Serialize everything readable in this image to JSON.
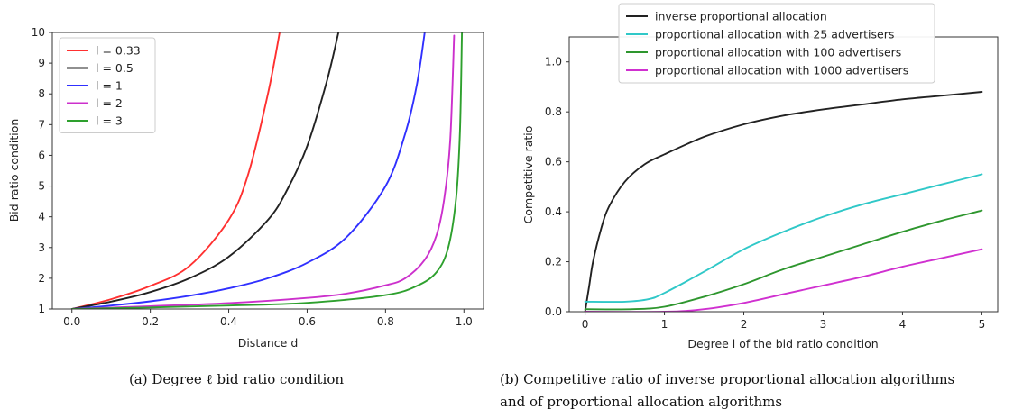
{
  "chart_data": [
    {
      "type": "line",
      "xlabel": "Distance d",
      "ylabel": "Bid ratio condition",
      "xlim": [
        -0.05,
        1.05
      ],
      "ylim": [
        1,
        10
      ],
      "xticks": [
        "0.0",
        "0.2",
        "0.4",
        "0.6",
        "0.8",
        "1.0"
      ],
      "yticks": [
        "1",
        "2",
        "3",
        "4",
        "5",
        "6",
        "7",
        "8",
        "9",
        "10"
      ],
      "legend_position": "top-left",
      "grid": false,
      "caption": "(a) Degree ℓ bid ratio condition",
      "series": [
        {
          "name": "l = 0.33",
          "color": "#ff3030",
          "x": [
            0,
            0.1,
            0.2,
            0.3,
            0.4,
            0.45,
            0.5,
            0.53
          ],
          "y": [
            1.0,
            1.32,
            1.75,
            2.4,
            3.9,
            5.4,
            8.0,
            10.0
          ]
        },
        {
          "name": "l = 0.5",
          "color": "#222222",
          "x": [
            0,
            0.1,
            0.2,
            0.3,
            0.4,
            0.5,
            0.55,
            0.6,
            0.65,
            0.68
          ],
          "y": [
            1.0,
            1.24,
            1.55,
            2.0,
            2.7,
            3.9,
            4.9,
            6.3,
            8.4,
            10.0
          ]
        },
        {
          "name": "l = 1",
          "color": "#3030ff",
          "x": [
            0,
            0.1,
            0.2,
            0.3,
            0.4,
            0.5,
            0.6,
            0.7,
            0.8,
            0.85,
            0.88,
            0.9
          ],
          "y": [
            1.0,
            1.11,
            1.25,
            1.43,
            1.67,
            2.0,
            2.5,
            3.33,
            5.0,
            6.7,
            8.3,
            10.0
          ]
        },
        {
          "name": "l = 2",
          "color": "#cc30cc",
          "x": [
            0,
            0.2,
            0.4,
            0.6,
            0.7,
            0.8,
            0.85,
            0.9,
            0.93,
            0.95,
            0.965,
            0.975
          ],
          "y": [
            1.0,
            1.09,
            1.19,
            1.36,
            1.5,
            1.77,
            2.0,
            2.6,
            3.4,
            4.6,
            6.5,
            9.9
          ]
        },
        {
          "name": "l = 3",
          "color": "#2ea02e",
          "x": [
            0,
            0.2,
            0.4,
            0.6,
            0.8,
            0.88,
            0.93,
            0.96,
            0.98,
            0.99,
            0.995
          ],
          "y": [
            1.0,
            1.05,
            1.11,
            1.2,
            1.45,
            1.75,
            2.2,
            3.0,
            4.6,
            6.8,
            10.0
          ]
        }
      ]
    },
    {
      "type": "line",
      "xlabel": "Degree l of the bid ratio condition",
      "ylabel": "Competitive ratio",
      "xlim": [
        -0.2,
        5.2
      ],
      "ylim": [
        0,
        1.1
      ],
      "xticks": [
        "0",
        "1",
        "2",
        "3",
        "4",
        "5"
      ],
      "yticks": [
        "0.0",
        "0.2",
        "0.4",
        "0.6",
        "0.8",
        "1.0"
      ],
      "legend_position": "top-center (above plot)",
      "grid": false,
      "caption_lines": [
        "(b) Competitive ratio of inverse proportional allocation algorithms",
        "and of proportional allocation algorithms"
      ],
      "series": [
        {
          "name": "inverse proportional allocation",
          "color": "#222222",
          "x": [
            0,
            0.05,
            0.1,
            0.2,
            0.3,
            0.5,
            0.75,
            1,
            1.5,
            2,
            2.5,
            3,
            3.5,
            4,
            4.5,
            5
          ],
          "y": [
            0,
            0.1,
            0.2,
            0.33,
            0.42,
            0.52,
            0.59,
            0.63,
            0.7,
            0.75,
            0.785,
            0.81,
            0.83,
            0.85,
            0.865,
            0.88
          ]
        },
        {
          "name": "proportional allocation with 25 advertisers",
          "color": "#30c8c8",
          "x": [
            0,
            0.5,
            0.8,
            1,
            1.5,
            2,
            2.5,
            3,
            3.5,
            4,
            4.5,
            5
          ],
          "y": [
            0.04,
            0.04,
            0.05,
            0.075,
            0.16,
            0.25,
            0.32,
            0.38,
            0.43,
            0.47,
            0.51,
            0.55
          ]
        },
        {
          "name": "proportional allocation with 100 advertisers",
          "color": "#2e962e",
          "x": [
            0,
            0.6,
            1,
            1.5,
            2,
            2.5,
            3,
            3.5,
            4,
            4.5,
            5
          ],
          "y": [
            0.01,
            0.01,
            0.02,
            0.06,
            0.11,
            0.17,
            0.22,
            0.27,
            0.32,
            0.365,
            0.405
          ]
        },
        {
          "name": "proportional allocation with 1000 advertisers",
          "color": "#d030d0",
          "x": [
            0,
            1,
            1.5,
            2,
            2.5,
            3,
            3.5,
            4,
            4.5,
            5
          ],
          "y": [
            0.0,
            0.0,
            0.01,
            0.035,
            0.07,
            0.105,
            0.14,
            0.18,
            0.215,
            0.25
          ]
        }
      ]
    }
  ]
}
